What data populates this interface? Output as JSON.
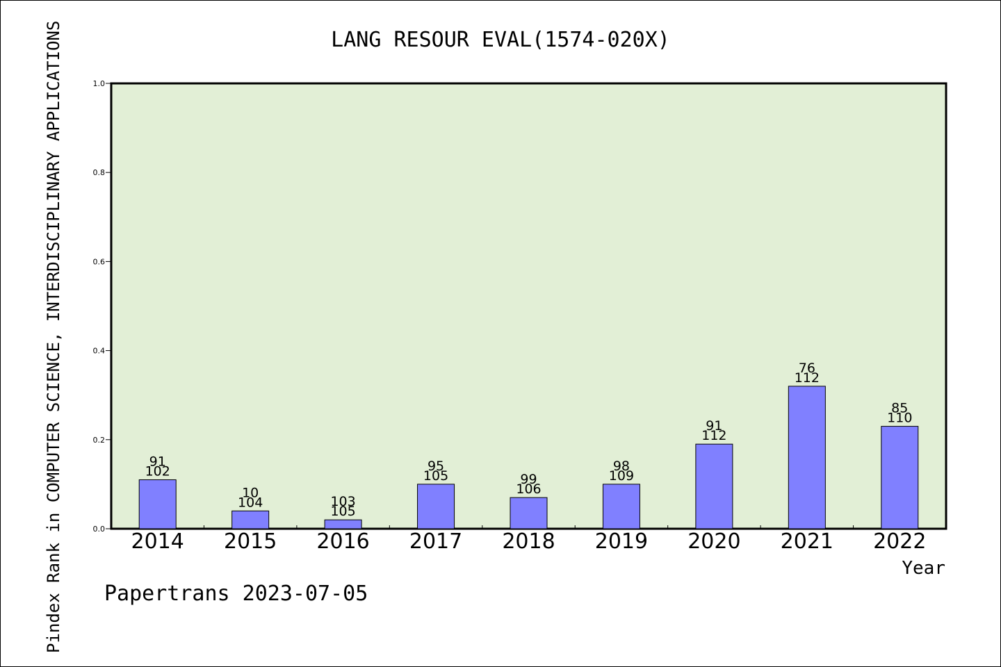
{
  "chart_data": {
    "type": "bar",
    "title": "LANG RESOUR EVAL(1574-020X)",
    "xlabel": "Year",
    "ylabel": "Pindex Rank in COMPUTER SCIENCE, INTERDISCIPLINARY APPLICATIONS",
    "ylim": [
      0,
      1.0
    ],
    "yticks": [
      "0.0",
      "0.2",
      "0.4",
      "0.6",
      "0.8",
      "1.0"
    ],
    "categories": [
      "2014",
      "2015",
      "2016",
      "2017",
      "2018",
      "2019",
      "2020",
      "2021",
      "2022"
    ],
    "values": [
      0.11,
      0.04,
      0.02,
      0.1,
      0.07,
      0.1,
      0.19,
      0.32,
      0.23
    ],
    "labels_top": [
      "91",
      "10",
      "103",
      "95",
      "99",
      "98",
      "91",
      "76",
      "85"
    ],
    "labels_bottom": [
      "102",
      "104",
      "105",
      "105",
      "106",
      "109",
      "112",
      "112",
      "110"
    ],
    "colors": {
      "bar": "#8080ff",
      "plot_bg": "#e2efd6",
      "axis": "#000000"
    },
    "grid": false
  },
  "footer": {
    "credit": "Papertrans 2023-07-05"
  }
}
